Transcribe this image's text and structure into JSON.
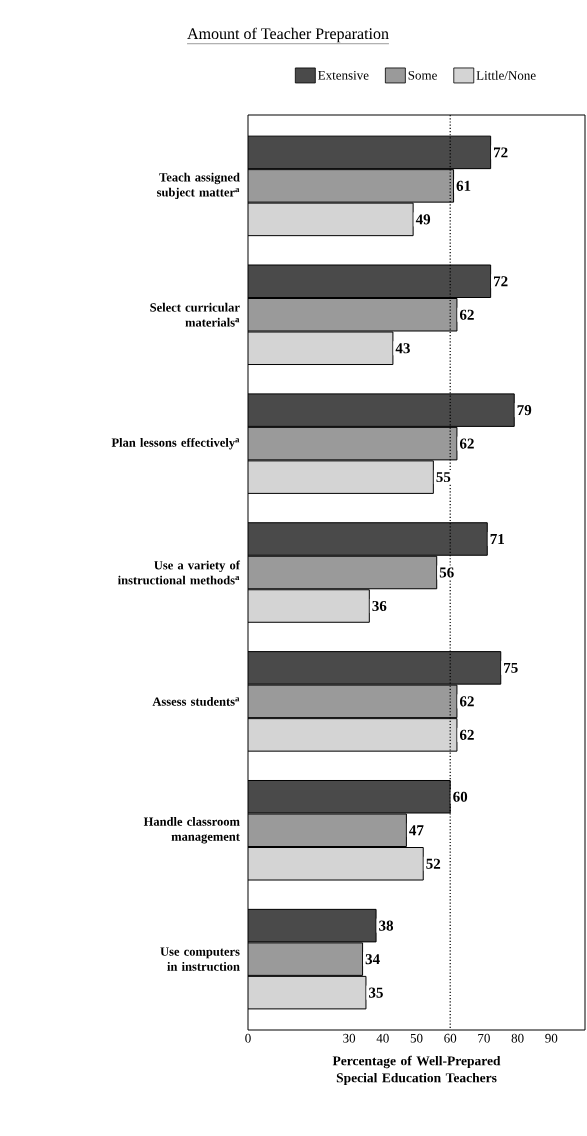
{
  "chart_data": {
    "type": "bar",
    "orientation": "horizontal",
    "legend_title": "Amount of Teacher Preparation",
    "xlabel": "Percentage of Well-Prepared Special Education Teachers",
    "categories": [
      "Teach assigned subject matter$^{a}$",
      "Select curricular materials$^{a}$",
      "Plan lessons effectively$^{a}$",
      "Use a variety of instructional methods$^{a}$",
      "Assess students$^{a}$",
      "Handle classroom management",
      "Use computers in instruction"
    ],
    "series": [
      {
        "name": "Extensive",
        "color": "#4a4a4a",
        "values": [
          72,
          72,
          79,
          71,
          75,
          60,
          38
        ]
      },
      {
        "name": "Some",
        "color": "#9a9a9a",
        "values": [
          61,
          62,
          62,
          56,
          62,
          47,
          34
        ]
      },
      {
        "name": "Little/None",
        "color": "#d4d4d4",
        "values": [
          49,
          43,
          55,
          36,
          62,
          52,
          35
        ]
      }
    ],
    "xlim": [
      0,
      100
    ],
    "xticks": [
      0,
      30,
      40,
      50,
      60,
      70,
      80,
      90
    ],
    "ref_lines": [
      {
        "axis": "x",
        "value": 60,
        "line_style": "dotted"
      }
    ],
    "data_labels": true,
    "legend": "top"
  }
}
